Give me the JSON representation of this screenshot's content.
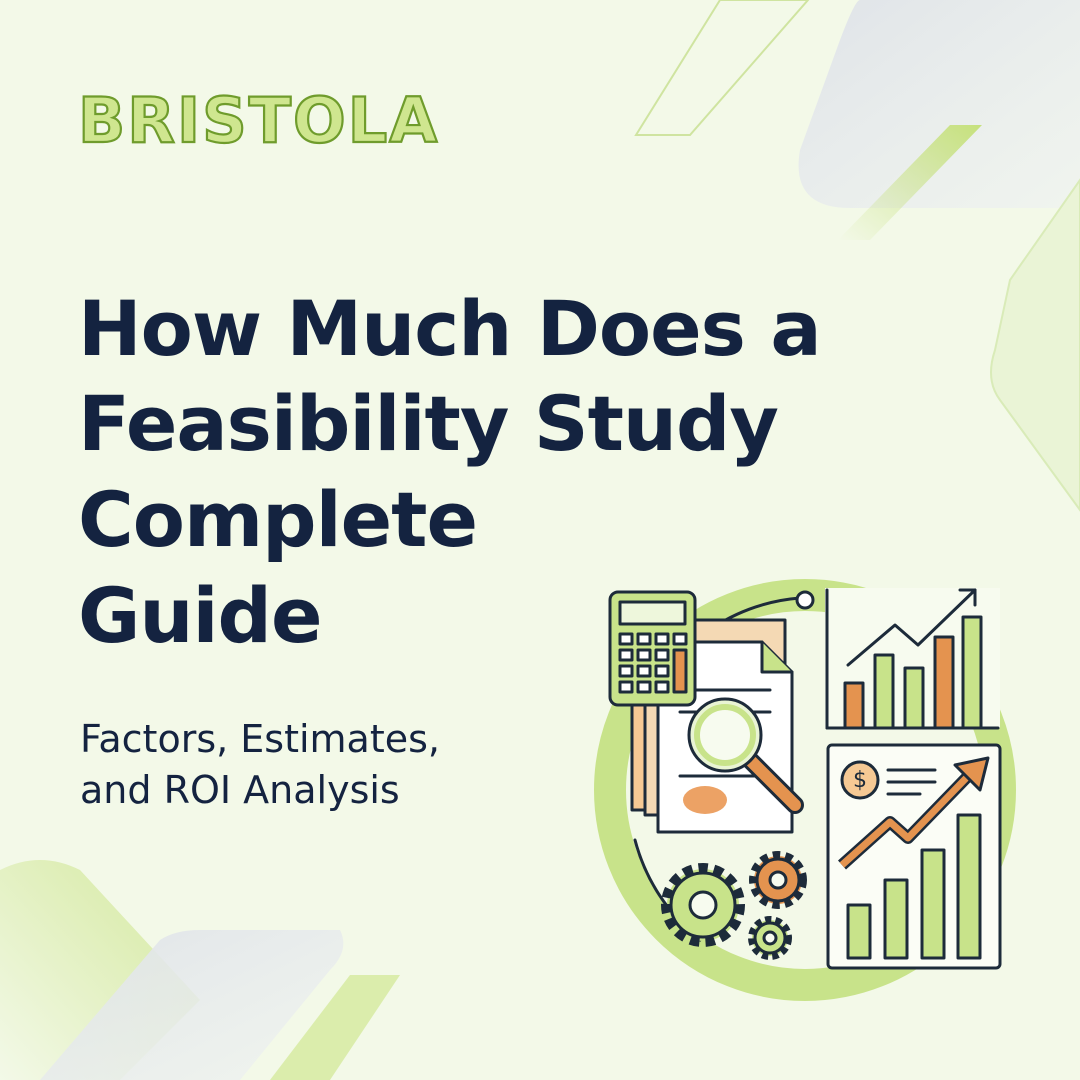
{
  "brand": {
    "logo": "BRISTOLA"
  },
  "headline": {
    "lines": [
      "How Much Does a",
      "Feasibility Study",
      "Complete",
      "Guide"
    ]
  },
  "subheadline": {
    "lines": [
      "Factors, Estimates,",
      "and ROI Analysis"
    ]
  },
  "illustration": {
    "coin_symbol": "$"
  }
}
